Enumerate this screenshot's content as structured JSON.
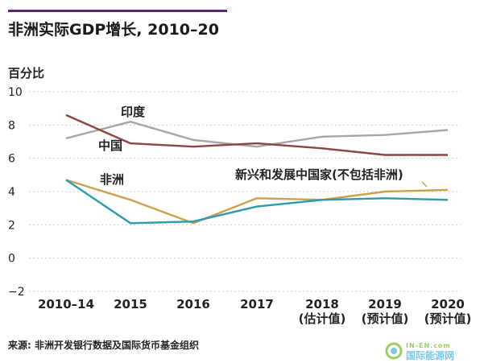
{
  "header": {
    "title": "非洲实际GDP增长, 2010–20"
  },
  "footer": {
    "source": "来源: 非洲开发银行数据及国际货币基金组织",
    "watermark_small": "IN-EN.com",
    "watermark_text": "国际能源网"
  },
  "chart_data": {
    "type": "line",
    "ylabel": "百分比",
    "ylim": [
      -2,
      10
    ],
    "yticks": [
      -2,
      0,
      2,
      4,
      6,
      8,
      10
    ],
    "categories": [
      "2010–14",
      "2015",
      "2016",
      "2017",
      "2018",
      "2019",
      "2020"
    ],
    "category_sublabels": [
      "",
      "",
      "",
      "",
      "(估计值)",
      "(预计值)",
      "(预计值)"
    ],
    "grid": true,
    "series": [
      {
        "name": "印度",
        "color": "#a6a6a6",
        "values": [
          7.2,
          8.2,
          7.1,
          6.7,
          7.3,
          7.4,
          7.7
        ]
      },
      {
        "name": "中国",
        "color": "#8b4545",
        "values": [
          8.6,
          6.9,
          6.7,
          6.9,
          6.6,
          6.2,
          6.2
        ]
      },
      {
        "name": "新兴和发展中国家(不包括非洲)",
        "color": "#c9a24a",
        "values": [
          4.7,
          3.5,
          2.1,
          3.6,
          3.5,
          4.0,
          4.1
        ]
      },
      {
        "name": "非洲",
        "color": "#2a9bb0",
        "values": [
          4.7,
          2.1,
          2.2,
          3.1,
          3.5,
          3.6,
          3.5
        ]
      }
    ]
  }
}
